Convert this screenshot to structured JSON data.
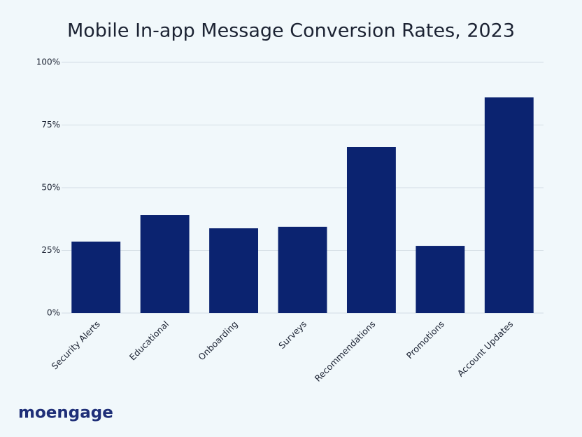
{
  "chart_data": {
    "type": "bar",
    "title": "Mobile In-app Message Conversion Rates, 2023",
    "categories": [
      "Security Alerts",
      "Educational",
      "Onboarding",
      "Surveys",
      "Recommendations",
      "Promotions",
      "Account Updates"
    ],
    "values": [
      28.5,
      39.1,
      33.8,
      34.4,
      66.2,
      26.8,
      86.0
    ],
    "color": "#0b2370",
    "ylim": [
      0,
      100
    ],
    "yticks": [
      {
        "value": 0,
        "label": "0%"
      },
      {
        "value": 25,
        "label": "25%"
      },
      {
        "value": 50,
        "label": "50%"
      },
      {
        "value": 75,
        "label": "75%"
      },
      {
        "value": 100,
        "label": "100%"
      }
    ],
    "grid": true
  },
  "brand": "moengage"
}
